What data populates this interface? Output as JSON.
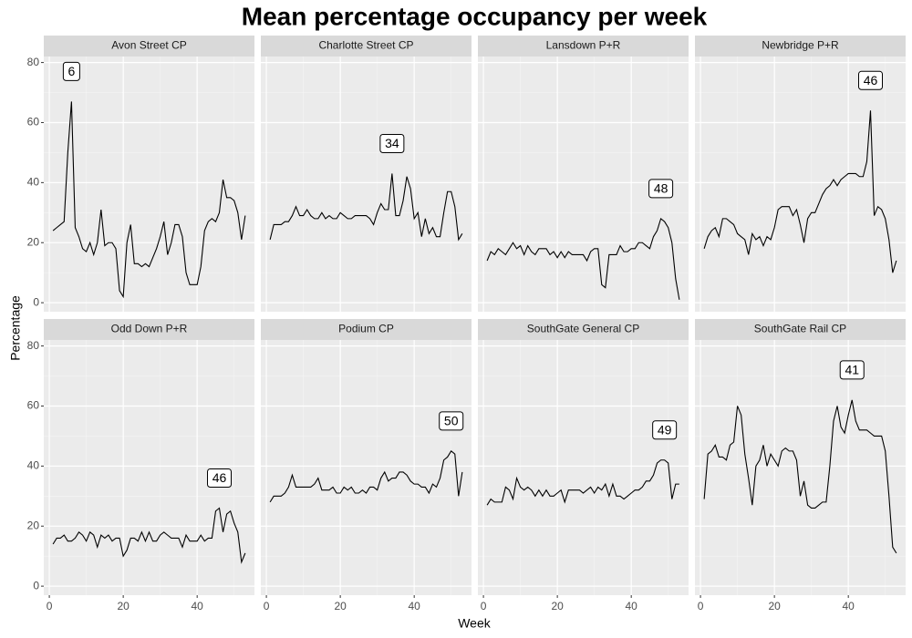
{
  "title": "Mean percentage occupancy per week",
  "xlabel": "Week",
  "ylabel": "Percentage",
  "scales": {
    "xlim": [
      -1.5,
      55.5
    ],
    "ylim": [
      -3,
      82
    ],
    "xticks": [
      0,
      20,
      40
    ],
    "yticks": [
      0,
      20,
      40,
      60,
      80
    ],
    "x_minor_ticks": [
      10,
      30,
      50
    ],
    "y_minor_ticks": [
      10,
      30,
      50,
      70
    ],
    "grid": true,
    "line_color": "#000000"
  },
  "chart_data": [
    {
      "type": "line",
      "title": "Avon Street CP",
      "peak_week": 6,
      "x": [
        1,
        2,
        3,
        4,
        5,
        6,
        7,
        8,
        9,
        10,
        11,
        12,
        13,
        14,
        15,
        16,
        17,
        18,
        19,
        20,
        21,
        22,
        23,
        24,
        25,
        26,
        27,
        28,
        29,
        30,
        31,
        32,
        33,
        34,
        35,
        36,
        37,
        38,
        39,
        40,
        41,
        42,
        43,
        44,
        45,
        46,
        47,
        48,
        49,
        50,
        51,
        52,
        53
      ],
      "values": [
        24,
        25,
        26,
        27,
        50,
        67,
        25,
        22,
        18,
        17,
        20,
        16,
        20,
        31,
        19,
        20,
        20,
        18,
        4,
        2,
        20,
        26,
        13,
        13,
        12,
        13,
        12,
        15,
        18,
        22,
        27,
        16,
        20,
        26,
        26,
        22,
        10,
        6,
        6,
        6,
        12,
        24,
        27,
        28,
        27,
        30,
        41,
        35,
        35,
        34,
        30,
        21,
        29
      ]
    },
    {
      "type": "line",
      "title": "Charlotte Street CP",
      "peak_week": 34,
      "x": [
        1,
        2,
        3,
        4,
        5,
        6,
        7,
        8,
        9,
        10,
        11,
        12,
        13,
        14,
        15,
        16,
        17,
        18,
        19,
        20,
        21,
        22,
        23,
        24,
        25,
        26,
        27,
        28,
        29,
        30,
        31,
        32,
        33,
        34,
        35,
        36,
        37,
        38,
        39,
        40,
        41,
        42,
        43,
        44,
        45,
        46,
        47,
        48,
        49,
        50,
        51,
        52,
        53
      ],
      "values": [
        21,
        26,
        26,
        26,
        27,
        27,
        29,
        32,
        29,
        29,
        31,
        29,
        28,
        28,
        30,
        28,
        29,
        28,
        28,
        30,
        29,
        28,
        28,
        29,
        29,
        29,
        29,
        28,
        26,
        30,
        33,
        31,
        31,
        43,
        29,
        29,
        34,
        42,
        38,
        28,
        30,
        22,
        28,
        23,
        25,
        22,
        22,
        30,
        37,
        37,
        32,
        21,
        23
      ]
    },
    {
      "type": "line",
      "title": "Lansdown P+R",
      "peak_week": 48,
      "x": [
        1,
        2,
        3,
        4,
        5,
        6,
        7,
        8,
        9,
        10,
        11,
        12,
        13,
        14,
        15,
        16,
        17,
        18,
        19,
        20,
        21,
        22,
        23,
        24,
        25,
        26,
        27,
        28,
        29,
        30,
        31,
        32,
        33,
        34,
        35,
        36,
        37,
        38,
        39,
        40,
        41,
        42,
        43,
        44,
        45,
        46,
        47,
        48,
        49,
        50,
        51,
        52,
        53
      ],
      "values": [
        14,
        17,
        16,
        18,
        17,
        16,
        18,
        20,
        18,
        19,
        16,
        19,
        17,
        16,
        18,
        18,
        18,
        16,
        17,
        15,
        17,
        15,
        17,
        16,
        16,
        16,
        16,
        14,
        17,
        18,
        18,
        6,
        5,
        16,
        16,
        16,
        19,
        17,
        17,
        18,
        18,
        20,
        20,
        19,
        18,
        22,
        24,
        28,
        27,
        25,
        20,
        8,
        1
      ]
    },
    {
      "type": "line",
      "title": "Newbridge P+R",
      "peak_week": 46,
      "x": [
        1,
        2,
        3,
        4,
        5,
        6,
        7,
        8,
        9,
        10,
        11,
        12,
        13,
        14,
        15,
        16,
        17,
        18,
        19,
        20,
        21,
        22,
        23,
        24,
        25,
        26,
        27,
        28,
        29,
        30,
        31,
        32,
        33,
        34,
        35,
        36,
        37,
        38,
        39,
        40,
        41,
        42,
        43,
        44,
        45,
        46,
        47,
        48,
        49,
        50,
        51,
        52,
        53
      ],
      "values": [
        18,
        22,
        24,
        25,
        22,
        28,
        28,
        27,
        26,
        23,
        22,
        21,
        16,
        23,
        21,
        22,
        19,
        22,
        21,
        25,
        31,
        32,
        32,
        32,
        29,
        31,
        26,
        20,
        28,
        30,
        30,
        33,
        36,
        38,
        39,
        41,
        39,
        41,
        42,
        43,
        43,
        43,
        42,
        42,
        47,
        64,
        29,
        32,
        31,
        28,
        21,
        10,
        14
      ]
    },
    {
      "type": "line",
      "title": "Odd Down P+R",
      "peak_week": 46,
      "x": [
        1,
        2,
        3,
        4,
        5,
        6,
        7,
        8,
        9,
        10,
        11,
        12,
        13,
        14,
        15,
        16,
        17,
        18,
        19,
        20,
        21,
        22,
        23,
        24,
        25,
        26,
        27,
        28,
        29,
        30,
        31,
        32,
        33,
        34,
        35,
        36,
        37,
        38,
        39,
        40,
        41,
        42,
        43,
        44,
        45,
        46,
        47,
        48,
        49,
        50,
        51,
        52,
        53
      ],
      "values": [
        14,
        16,
        16,
        17,
        15,
        15,
        16,
        18,
        17,
        15,
        18,
        17,
        13,
        17,
        16,
        17,
        15,
        16,
        16,
        10,
        12,
        16,
        16,
        15,
        18,
        15,
        18,
        15,
        15,
        17,
        18,
        17,
        16,
        16,
        16,
        13,
        17,
        15,
        15,
        15,
        17,
        15,
        16,
        16,
        25,
        26,
        18,
        24,
        25,
        21,
        18,
        8,
        11
      ]
    },
    {
      "type": "line",
      "title": "Podium CP",
      "peak_week": 50,
      "x": [
        1,
        2,
        3,
        4,
        5,
        6,
        7,
        8,
        9,
        10,
        11,
        12,
        13,
        14,
        15,
        16,
        17,
        18,
        19,
        20,
        21,
        22,
        23,
        24,
        25,
        26,
        27,
        28,
        29,
        30,
        31,
        32,
        33,
        34,
        35,
        36,
        37,
        38,
        39,
        40,
        41,
        42,
        43,
        44,
        45,
        46,
        47,
        48,
        49,
        50,
        51,
        52,
        53
      ],
      "values": [
        28,
        30,
        30,
        30,
        31,
        33,
        37,
        33,
        33,
        33,
        33,
        33,
        34,
        36,
        32,
        32,
        32,
        33,
        31,
        31,
        33,
        32,
        33,
        31,
        31,
        32,
        31,
        33,
        33,
        32,
        36,
        38,
        35,
        36,
        36,
        38,
        38,
        37,
        35,
        34,
        34,
        33,
        33,
        31,
        34,
        33,
        36,
        42,
        43,
        45,
        44,
        30,
        38
      ]
    },
    {
      "type": "line",
      "title": "SouthGate General CP",
      "peak_week": 49,
      "x": [
        1,
        2,
        3,
        4,
        5,
        6,
        7,
        8,
        9,
        10,
        11,
        12,
        13,
        14,
        15,
        16,
        17,
        18,
        19,
        20,
        21,
        22,
        23,
        24,
        25,
        26,
        27,
        28,
        29,
        30,
        31,
        32,
        33,
        34,
        35,
        36,
        37,
        38,
        39,
        40,
        41,
        42,
        43,
        44,
        45,
        46,
        47,
        48,
        49,
        50,
        51,
        52,
        53
      ],
      "values": [
        27,
        29,
        28,
        28,
        28,
        33,
        32,
        29,
        36,
        33,
        32,
        33,
        32,
        30,
        32,
        30,
        32,
        30,
        30,
        31,
        32,
        28,
        32,
        32,
        32,
        32,
        31,
        32,
        33,
        31,
        33,
        32,
        34,
        30,
        34,
        30,
        30,
        29,
        30,
        31,
        32,
        32,
        33,
        35,
        35,
        37,
        41,
        42,
        42,
        41,
        29,
        34,
        34
      ]
    },
    {
      "type": "line",
      "title": "SouthGate Rail CP",
      "peak_week": 41,
      "x": [
        1,
        2,
        3,
        4,
        5,
        6,
        7,
        8,
        9,
        10,
        11,
        12,
        13,
        14,
        15,
        16,
        17,
        18,
        19,
        20,
        21,
        22,
        23,
        24,
        25,
        26,
        27,
        28,
        29,
        30,
        31,
        32,
        33,
        34,
        35,
        36,
        37,
        38,
        39,
        40,
        41,
        42,
        43,
        44,
        45,
        46,
        47,
        48,
        49,
        50,
        51,
        52,
        53
      ],
      "values": [
        29,
        44,
        45,
        47,
        43,
        43,
        42,
        47,
        48,
        60,
        57,
        44,
        36,
        27,
        40,
        42,
        47,
        40,
        44,
        42,
        40,
        45,
        46,
        45,
        45,
        42,
        30,
        35,
        27,
        26,
        26,
        27,
        28,
        28,
        40,
        55,
        60,
        53,
        51,
        57,
        62,
        55,
        52,
        52,
        52,
        51,
        50,
        50,
        50,
        45,
        30,
        13,
        11
      ]
    }
  ]
}
